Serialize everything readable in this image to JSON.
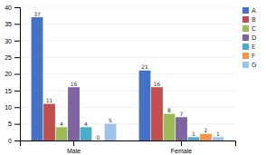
{
  "chart_data": {
    "type": "bar",
    "categories": [
      "Male",
      "Female"
    ],
    "series": [
      {
        "name": "A",
        "color": "#4472C4",
        "values": [
          37,
          21
        ]
      },
      {
        "name": "B",
        "color": "#C0504D",
        "values": [
          11,
          16
        ]
      },
      {
        "name": "C",
        "color": "#9BBB59",
        "values": [
          4,
          8
        ]
      },
      {
        "name": "D",
        "color": "#8064A2",
        "values": [
          16,
          7
        ]
      },
      {
        "name": "E",
        "color": "#4BACC6",
        "values": [
          4,
          1
        ]
      },
      {
        "name": "F",
        "color": "#F79646",
        "values": [
          0,
          2
        ]
      },
      {
        "name": "G",
        "color": "#9DC3E6",
        "values": [
          5,
          1
        ]
      }
    ],
    "ylim": [
      0,
      40
    ],
    "yticks": [
      0,
      5,
      10,
      15,
      20,
      25,
      30,
      35,
      40
    ],
    "grid": true,
    "legend": "right",
    "data_labels": true
  }
}
